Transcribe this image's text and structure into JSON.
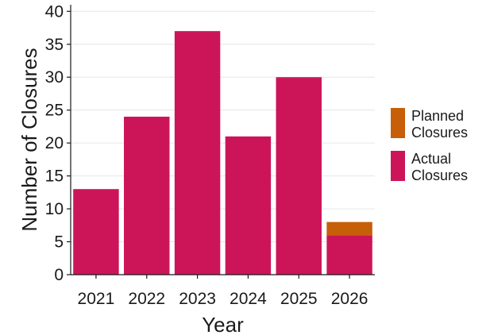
{
  "chart_data": {
    "type": "bar",
    "stacked": true,
    "categories": [
      "2021",
      "2022",
      "2023",
      "2024",
      "2025",
      "2026"
    ],
    "series": [
      {
        "name": "Actual\nClosures",
        "color": "#cc1559",
        "values": [
          13,
          24,
          37,
          21,
          30,
          6
        ]
      },
      {
        "name": "Planned\nClosures",
        "color": "#c65f08",
        "values": [
          0,
          0,
          0,
          0,
          0,
          2
        ]
      }
    ],
    "xlabel": "Year",
    "ylabel": "Number of Closures",
    "ylim": [
      0,
      41
    ],
    "yticks": [
      0,
      5,
      10,
      15,
      20,
      25,
      30,
      35,
      40
    ],
    "grid": true,
    "legend": {
      "placement": "right",
      "order": [
        "Planned\nClosures",
        "Actual\nClosures"
      ]
    }
  }
}
